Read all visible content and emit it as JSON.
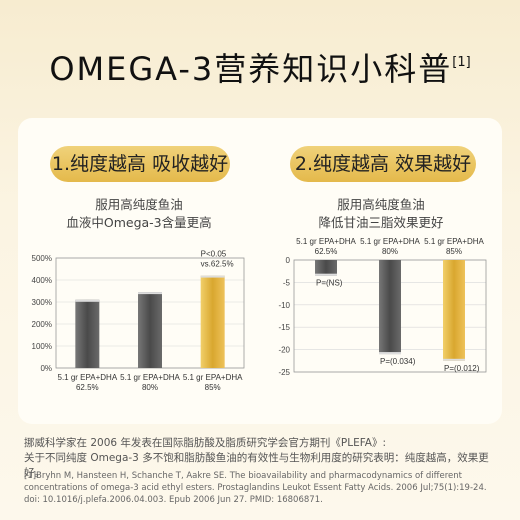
{
  "title": "OMEGA-3营养知识小科普",
  "title_ref": "[1]",
  "colors": {
    "gold": "#e4b94b",
    "gray": "#555555",
    "background": "#fbf4e2"
  },
  "panels": [
    {
      "heading": "1.纯度越高  吸收越好",
      "line1": "服用高纯度鱼油",
      "line2": "血液中Omega-3含量更高"
    },
    {
      "heading": "2.纯度越高  效果越好",
      "line1": "服用高纯度鱼油",
      "line2": "降低甘油三脂效果更好"
    }
  ],
  "chart_data": [
    {
      "type": "bar",
      "categories": [
        "5.1 gr EPA+DHA 62.5%",
        "5.1 gr EPA+DHA 80%",
        "5.1 gr EPA+DHA 85%"
      ],
      "values": [
        310,
        345,
        420
      ],
      "ylim": [
        0,
        500
      ],
      "yticks": [
        "0%",
        "100%",
        "200%",
        "300%",
        "400%",
        "500%"
      ],
      "bar_colors": [
        "gray",
        "gray",
        "gold"
      ],
      "grid": true,
      "annotations": [
        "P<0.05",
        "vs.62.5%"
      ]
    },
    {
      "type": "bar",
      "categories": [
        "5.1 gr EPA+DHA 62.5%",
        "5.1 gr EPA+DHA 80%",
        "5.1 gr EPA+DHA 85%"
      ],
      "values": [
        -3.5,
        -21,
        -22.5
      ],
      "ylim": [
        -25,
        0
      ],
      "yticks": [
        "0",
        "-5",
        "-10",
        "-15",
        "-20",
        "-25"
      ],
      "bar_colors": [
        "gray",
        "gray",
        "gold"
      ],
      "grid": true,
      "annotations": [
        "P=(NS)",
        "P=(0.034)",
        "P=(0.012)"
      ]
    }
  ],
  "footnote": {
    "line1": "挪威科学家在 2006 年发表在国际脂肪酸及脂质研究学会官方期刊《PLEFA》:",
    "line2": "关于不同纯度 Omega-3 多不饱和脂肪酸鱼油的有效性与生物利用度的研究表明：纯度越高，效果更好。",
    "ref": "[1]Bryhn M, Hansteen H, Schanche T, Aakre SE. The bioavailability and pharmacodynamics of different concentrations of omega-3 acid ethyl esters. Prostaglandins Leukot Essent Fatty Acids. 2006 Jul;75(1):19-24. doi: 10.1016/j.plefa.2006.04.003. Epub 2006 Jun 27. PMID: 16806871."
  }
}
